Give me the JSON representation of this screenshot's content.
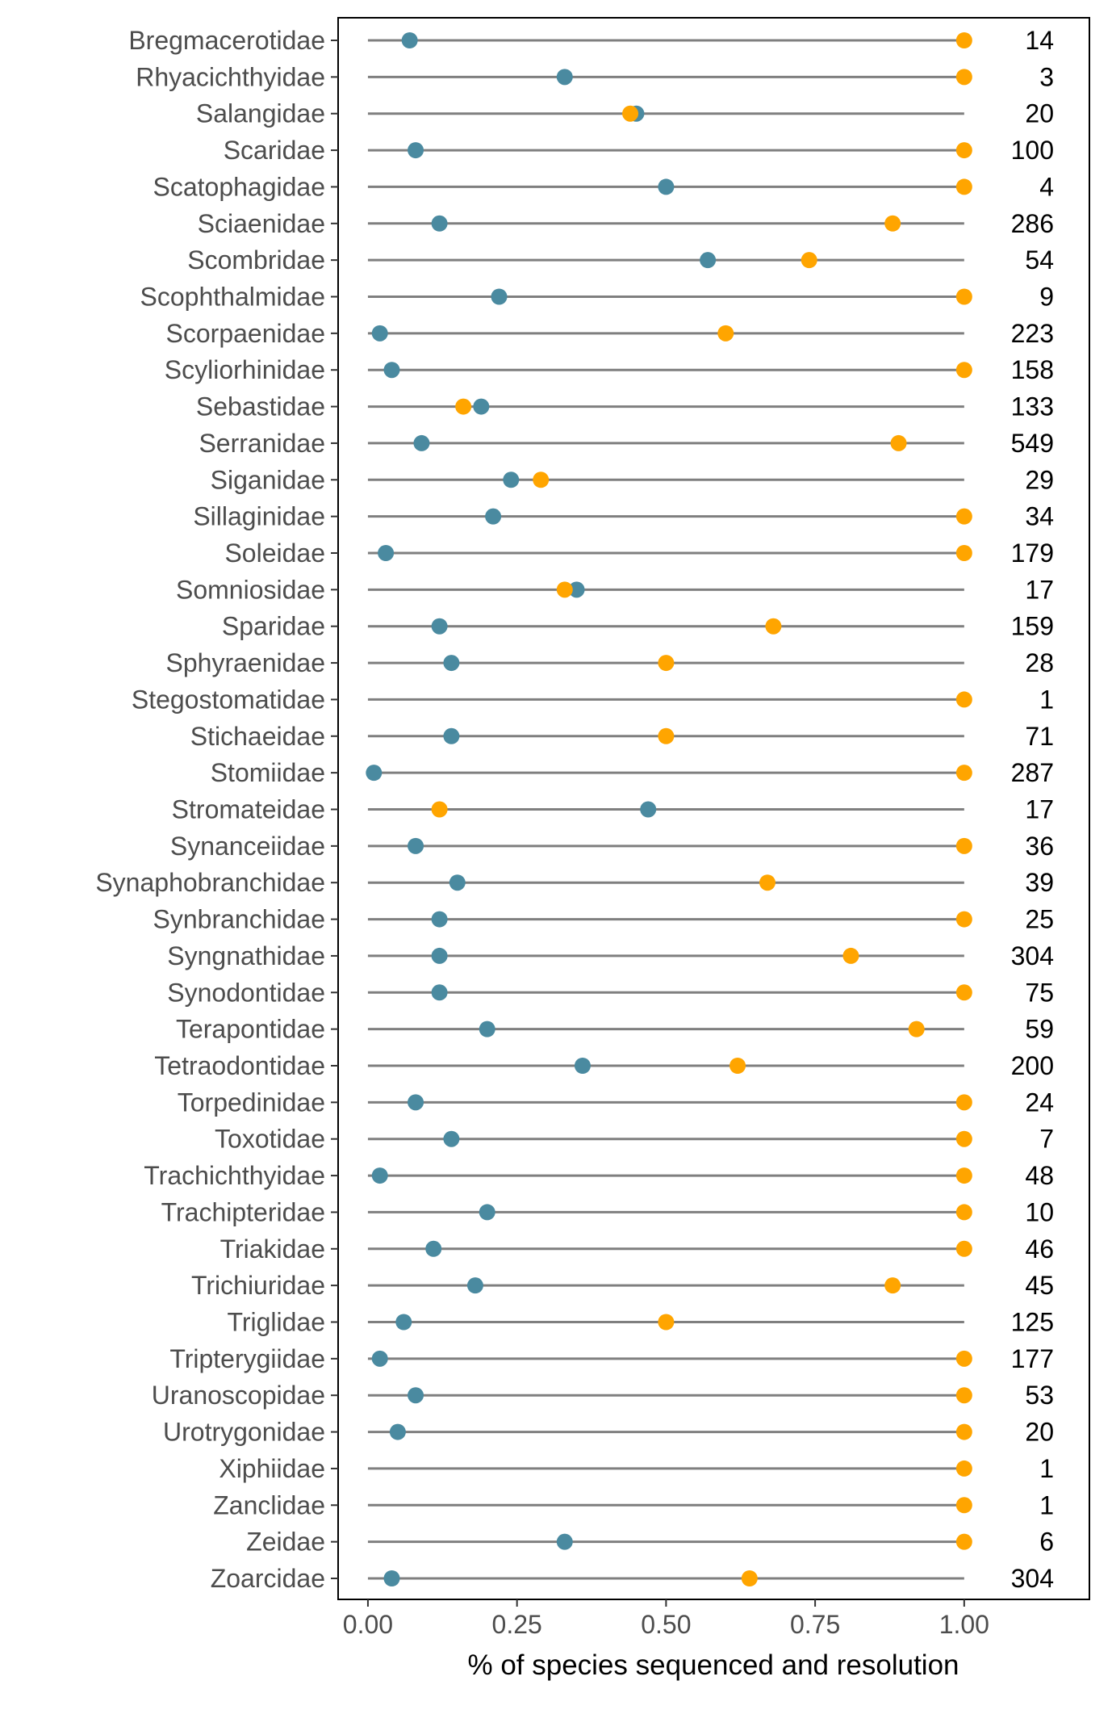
{
  "chart_data": {
    "type": "scatter",
    "subtype": "dumbbell",
    "title": "",
    "xlabel": "% of species sequenced and resolution",
    "ylabel": "",
    "xlim": [
      -0.05,
      1.21
    ],
    "xticks": [
      0.0,
      0.25,
      0.5,
      0.75,
      1.0
    ],
    "xtick_labels": [
      "0.00",
      "0.25",
      "0.50",
      "0.75",
      "1.00"
    ],
    "grid": false,
    "legend": "none",
    "colors": {
      "sequenced": "#4a8aa0",
      "resolution": "#ffa500",
      "segment": "#7f7f7f"
    },
    "categories": [
      "Bregmacerotidae",
      "Rhyacichthyidae",
      "Salangidae",
      "Scaridae",
      "Scatophagidae",
      "Sciaenidae",
      "Scombridae",
      "Scophthalmidae",
      "Scorpaenidae",
      "Scyliorhinidae",
      "Sebastidae",
      "Serranidae",
      "Siganidae",
      "Sillaginidae",
      "Soleidae",
      "Somniosidae",
      "Sparidae",
      "Sphyraenidae",
      "Stegostomatidae",
      "Stichaeidae",
      "Stomiidae",
      "Stromateidae",
      "Synanceiidae",
      "Synaphobranchidae",
      "Synbranchidae",
      "Syngnathidae",
      "Synodontidae",
      "Terapontidae",
      "Tetraodontidae",
      "Torpedinidae",
      "Toxotidae",
      "Trachichthyidae",
      "Trachipteridae",
      "Triakidae",
      "Trichiuridae",
      "Triglidae",
      "Tripterygiidae",
      "Uranoscopidae",
      "Urotrygonidae",
      "Xiphiidae",
      "Zanclidae",
      "Zeidae",
      "Zoarcidae"
    ],
    "series": [
      {
        "key": "sequenced",
        "values": [
          0.07,
          0.33,
          0.45,
          0.08,
          0.5,
          0.12,
          0.57,
          0.22,
          0.02,
          0.04,
          0.19,
          0.09,
          0.24,
          0.21,
          0.03,
          0.35,
          0.12,
          0.14,
          null,
          0.14,
          0.01,
          0.47,
          0.08,
          0.15,
          0.12,
          0.12,
          0.12,
          0.2,
          0.36,
          0.08,
          0.14,
          0.02,
          0.2,
          0.11,
          0.18,
          0.06,
          0.02,
          0.08,
          0.05,
          null,
          null,
          0.33,
          0.04
        ]
      },
      {
        "key": "resolution",
        "values": [
          1.0,
          1.0,
          0.44,
          1.0,
          1.0,
          0.88,
          0.74,
          1.0,
          0.6,
          1.0,
          0.16,
          0.89,
          0.29,
          1.0,
          1.0,
          0.33,
          0.68,
          0.5,
          1.0,
          0.5,
          1.0,
          0.12,
          1.0,
          0.67,
          1.0,
          0.81,
          1.0,
          0.92,
          0.62,
          1.0,
          1.0,
          1.0,
          1.0,
          1.0,
          0.88,
          0.5,
          1.0,
          1.0,
          1.0,
          1.0,
          1.0,
          1.0,
          0.64
        ]
      }
    ],
    "counts": [
      "14",
      "3",
      "20",
      "100",
      "4",
      "286",
      "54",
      "9",
      "223",
      "158",
      "133",
      "549",
      "29",
      "34",
      "179",
      "17",
      "159",
      "28",
      "1",
      "71",
      "287",
      "17",
      "36",
      "39",
      "25",
      "304",
      "75",
      "59",
      "200",
      "24",
      "7",
      "48",
      "10",
      "46",
      "45",
      "125",
      "177",
      "53",
      "20",
      "1",
      "1",
      "6",
      "304"
    ]
  }
}
